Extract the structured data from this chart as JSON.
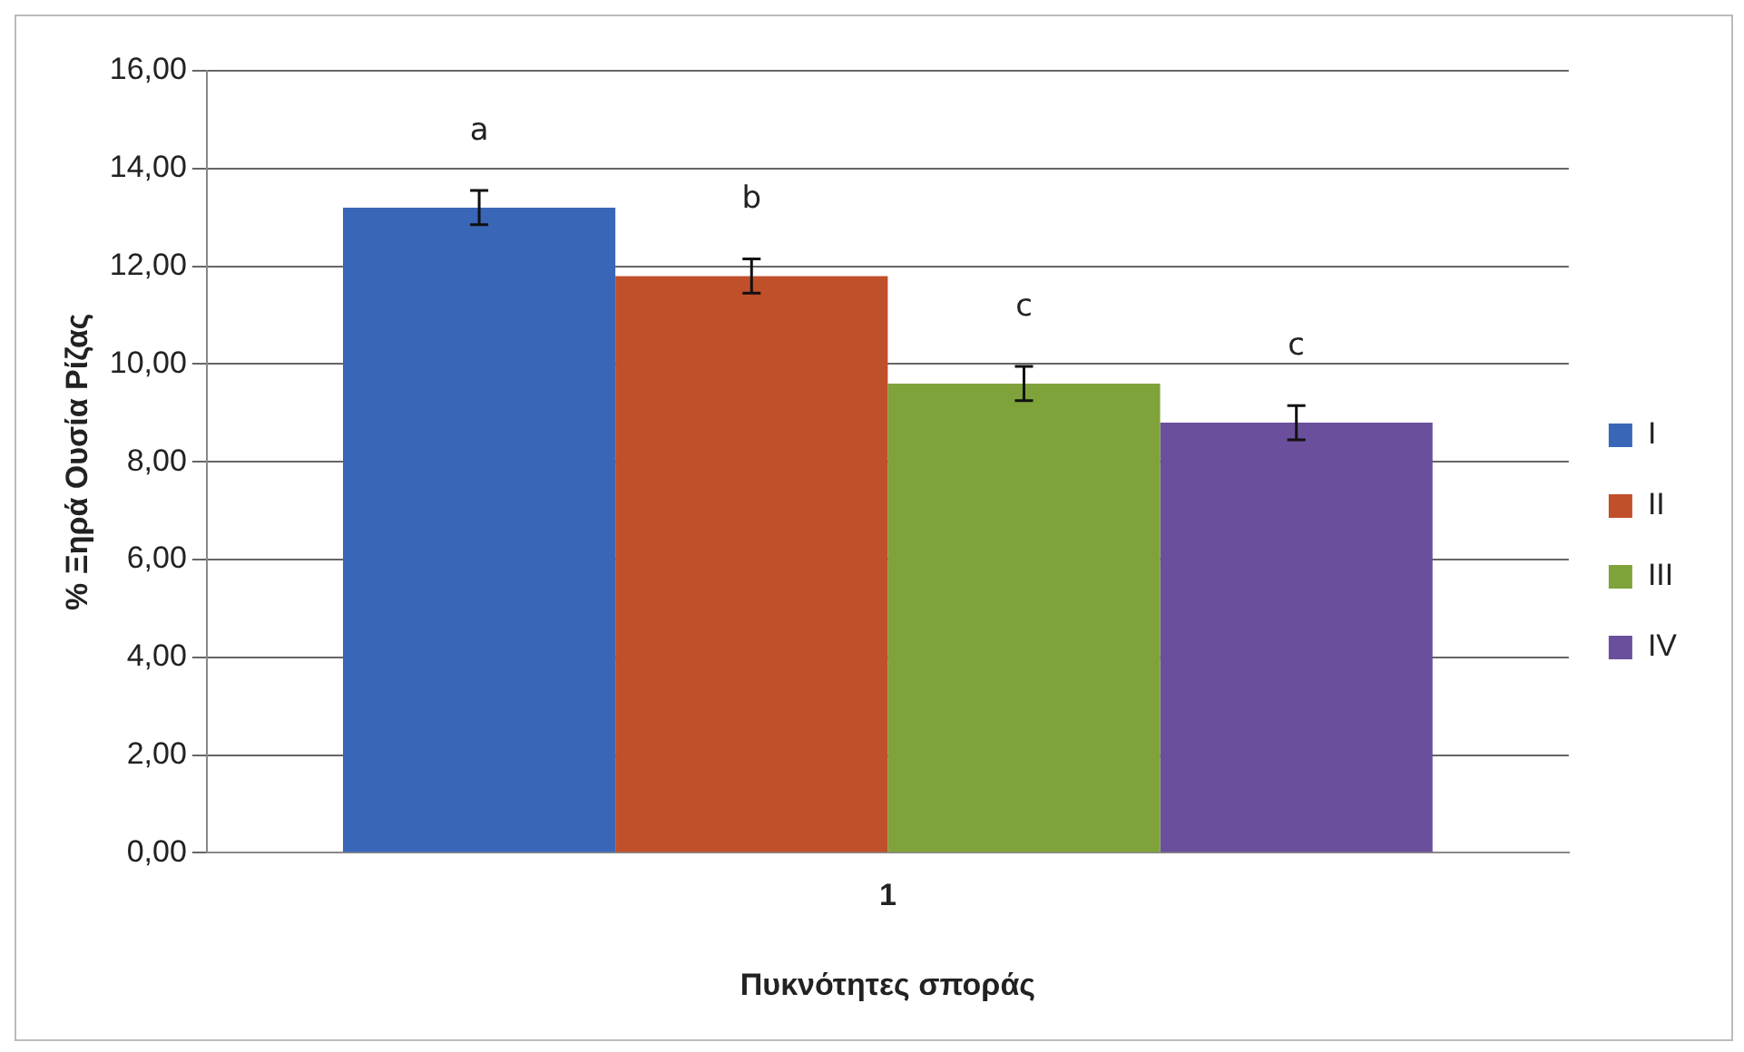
{
  "chart_data": {
    "type": "bar",
    "xlabel": "Πυκνότητες σποράς",
    "ylabel": "% Ξηρά Ουσία Ρίζας",
    "categories": [
      "1"
    ],
    "series": [
      {
        "name": "I",
        "color": "#3a66b8",
        "values": [
          13.2
        ],
        "errors": [
          0.35
        ]
      },
      {
        "name": "II",
        "color": "#c0502a",
        "values": [
          11.8
        ],
        "errors": [
          0.35
        ]
      },
      {
        "name": "III",
        "color": "#7fa33a",
        "values": [
          9.6
        ],
        "errors": [
          0.35
        ]
      },
      {
        "name": "IV",
        "color": "#6a4f9c",
        "values": [
          8.8
        ],
        "errors": [
          0.35
        ]
      }
    ],
    "annotations": [
      "a",
      "b",
      "c",
      "c"
    ],
    "ylim": [
      0,
      16
    ],
    "yticks": [
      {
        "value": 0,
        "label": "0,00"
      },
      {
        "value": 2,
        "label": "2,00"
      },
      {
        "value": 4,
        "label": "4,00"
      },
      {
        "value": 6,
        "label": "6,00"
      },
      {
        "value": 8,
        "label": "8,00"
      },
      {
        "value": 10,
        "label": "10,00"
      },
      {
        "value": 12,
        "label": "12,00"
      },
      {
        "value": 14,
        "label": "14,00"
      },
      {
        "value": 16,
        "label": "16,00"
      }
    ],
    "grid": "y",
    "legend": "right"
  }
}
